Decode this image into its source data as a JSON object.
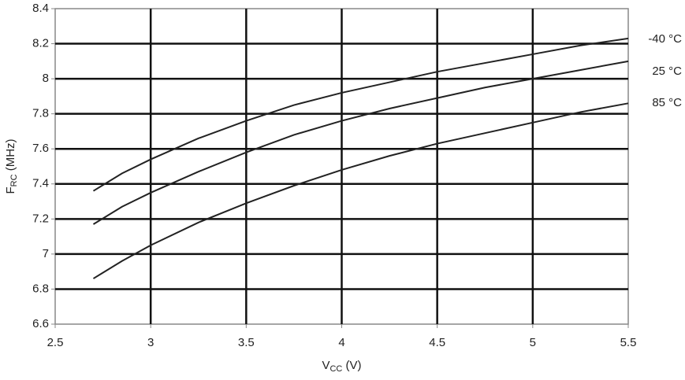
{
  "chart_data": {
    "type": "line",
    "xlabel": {
      "main": "V",
      "sub": "CC",
      "unit": " (V)"
    },
    "ylabel": {
      "main": "F",
      "sub": "RC",
      "unit": " (MHz)"
    },
    "x": [
      2.7,
      2.85,
      3.0,
      3.25,
      3.5,
      3.75,
      4.0,
      4.25,
      4.5,
      4.75,
      5.0,
      5.25,
      5.5
    ],
    "series": [
      {
        "name": "-40 °C",
        "color": "#222222",
        "values": [
          7.36,
          7.46,
          7.54,
          7.66,
          7.76,
          7.85,
          7.92,
          7.98,
          8.04,
          8.09,
          8.14,
          8.19,
          8.23
        ]
      },
      {
        "name": "25 °C",
        "color": "#222222",
        "values": [
          7.17,
          7.27,
          7.35,
          7.47,
          7.58,
          7.68,
          7.76,
          7.83,
          7.89,
          7.95,
          8.0,
          8.05,
          8.1
        ]
      },
      {
        "name": "85 °C",
        "color": "#222222",
        "values": [
          6.86,
          6.96,
          7.05,
          7.18,
          7.29,
          7.39,
          7.48,
          7.56,
          7.63,
          7.69,
          7.75,
          7.81,
          7.86
        ]
      }
    ],
    "xlim": [
      2.5,
      5.5
    ],
    "xticks": [
      2.5,
      3,
      3.5,
      4,
      4.5,
      5,
      5.5
    ],
    "ylim": [
      6.6,
      8.4
    ],
    "yticks": [
      6.6,
      6.8,
      7,
      7.2,
      7.4,
      7.6,
      7.8,
      8,
      8.2,
      8.4
    ],
    "grid": true
  }
}
